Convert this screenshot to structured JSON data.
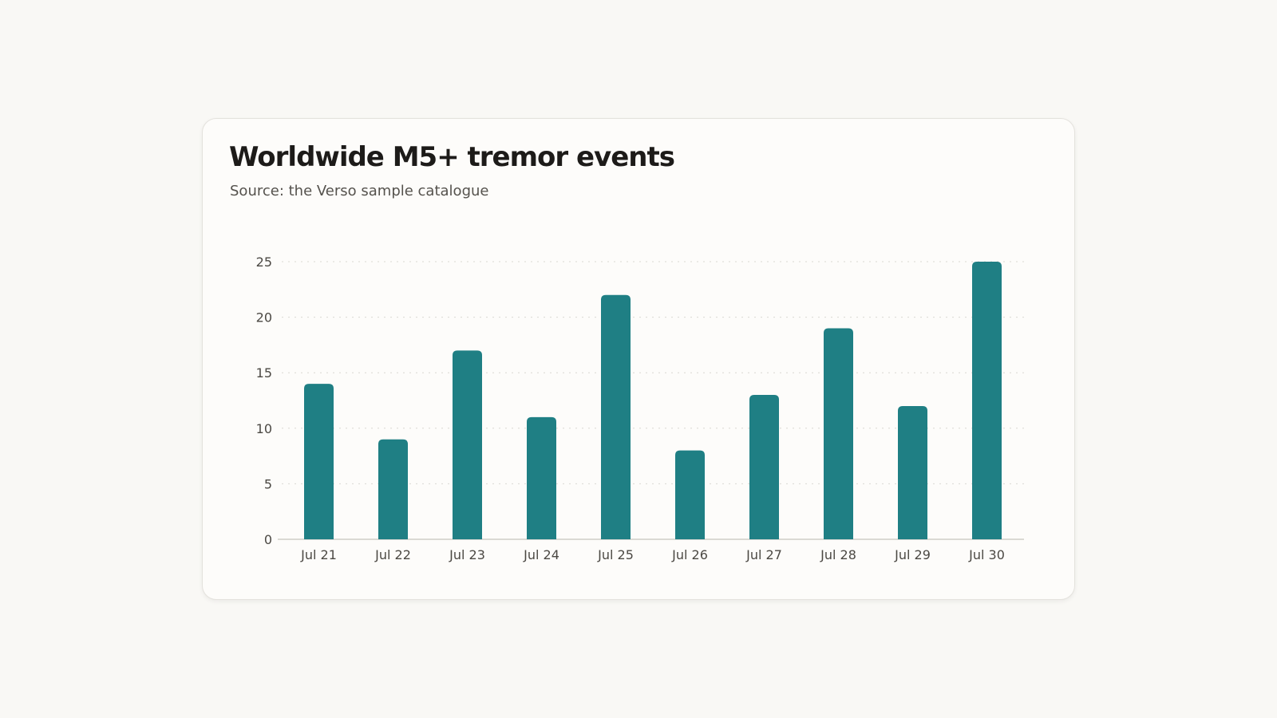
{
  "chart_data": {
    "type": "bar",
    "title": "Worldwide M5+ tremor events",
    "subtitle": "Source: the Verso sample catalogue",
    "xlabel": "",
    "ylabel": "",
    "categories": [
      "Jul 21",
      "Jul 22",
      "Jul 23",
      "Jul 24",
      "Jul 25",
      "Jul 26",
      "Jul 27",
      "Jul 28",
      "Jul 29",
      "Jul 30"
    ],
    "values": [
      14,
      9,
      17,
      11,
      22,
      8,
      13,
      19,
      12,
      25
    ],
    "ylim": [
      0,
      25
    ],
    "yticks": [
      0,
      5,
      10,
      15,
      20,
      25
    ],
    "grid": true,
    "legend": "none",
    "colors": {
      "bar": "#1f7f84",
      "grid": "#d9d7d2",
      "axis": "#cfcdc8"
    }
  }
}
